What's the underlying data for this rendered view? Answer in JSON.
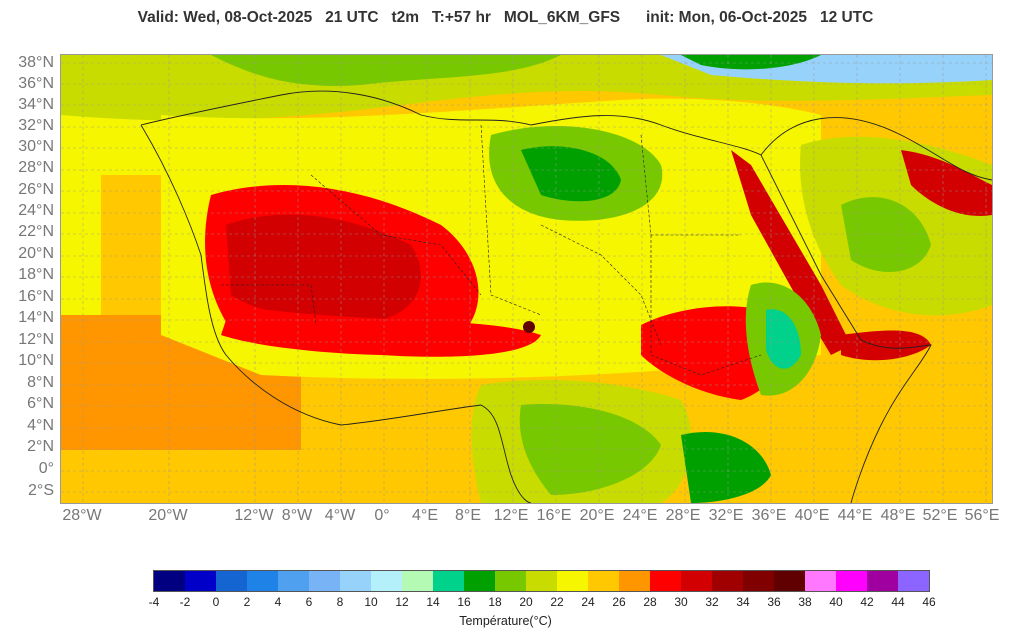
{
  "title": "Valid: Wed, 08-Oct-2025   21 UTC   t2m   T:+57 hr   MOL_6KM_GFS      init: Mon, 06-Oct-2025   12 UTC",
  "map": {
    "lon_range": [
      -30,
      56
    ],
    "lat_range": [
      -3.5,
      38
    ],
    "lat_labels": [
      "38°N",
      "36°N",
      "34°N",
      "32°N",
      "30°N",
      "28°N",
      "26°N",
      "24°N",
      "22°N",
      "20°N",
      "18°N",
      "16°N",
      "14°N",
      "12°N",
      "10°N",
      "8°N",
      "6°N",
      "4°N",
      "2°N",
      "0°",
      "2°S"
    ],
    "lon_labels": [
      "28°W",
      "20°W",
      "12°W",
      "8°W",
      "4°W",
      "0°",
      "4°E",
      "8°E",
      "12°E",
      "16°E",
      "20°E",
      "24°E",
      "28°E",
      "32°E",
      "36°E",
      "40°E",
      "44°E",
      "48°E",
      "52°E",
      "56°E"
    ],
    "grid": true,
    "field": "2 m temperature"
  },
  "colorbar": {
    "title": "Température(°C)",
    "ticks": [
      "-4",
      "-2",
      "0",
      "2",
      "4",
      "6",
      "8",
      "10",
      "12",
      "14",
      "16",
      "18",
      "20",
      "22",
      "24",
      "26",
      "28",
      "30",
      "32",
      "34",
      "36",
      "38",
      "40",
      "42",
      "44",
      "46"
    ],
    "colors": [
      "#000080",
      "#0000c8",
      "#1464d2",
      "#1e82e6",
      "#50a0f0",
      "#78b4f5",
      "#96d2fa",
      "#b4f0fa",
      "#b4fab4",
      "#00d28c",
      "#00a000",
      "#78c800",
      "#c8dc00",
      "#f6f600",
      "#ffc800",
      "#ff9600",
      "#ff0000",
      "#d20000",
      "#a00000",
      "#800000",
      "#600000",
      "#ff78ff",
      "#ff00ff",
      "#a000a0",
      "#8c64ff"
    ]
  }
}
